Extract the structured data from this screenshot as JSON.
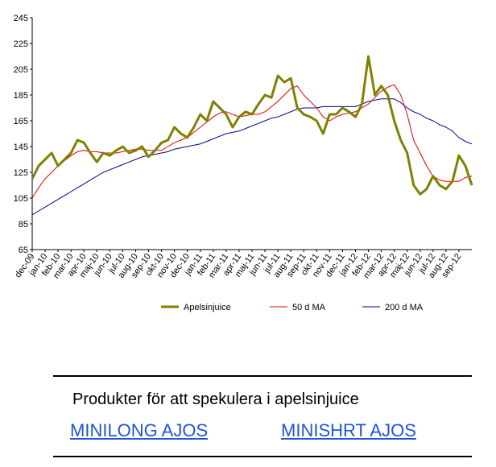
{
  "chart_data": {
    "type": "line",
    "categories": [
      "dec-09",
      null,
      "jan-10",
      null,
      "feb-10",
      null,
      "mar-10",
      null,
      "apr-10",
      null,
      "maj-10",
      null,
      "jun-10",
      null,
      "jul-10",
      null,
      "aug-10",
      null,
      "sep-10",
      null,
      "okt-10",
      null,
      "nov-10",
      null,
      "dec-10",
      null,
      "jan-11",
      null,
      "feb-11",
      null,
      "mar-11",
      null,
      "apr-11",
      null,
      "maj-11",
      null,
      "jun-11",
      null,
      "jul-11",
      null,
      "aug-11",
      null,
      "sep-11",
      null,
      "okt-11",
      null,
      "nov-11",
      null,
      "dec-11",
      null,
      "jan-12",
      null,
      "feb-12",
      null,
      "mar-12",
      null,
      "apr-12",
      null,
      "maj-12",
      null,
      "jun-12",
      null,
      "jul-12",
      null,
      "aug-12",
      null,
      "sep-12",
      null,
      null
    ],
    "series": [
      {
        "name": "Apelsinjuice",
        "color": "#808000",
        "width": 3,
        "values": [
          120,
          130,
          135,
          140,
          130,
          135,
          140,
          150,
          148,
          140,
          133,
          140,
          138,
          142,
          145,
          140,
          142,
          145,
          137,
          142,
          148,
          150,
          160,
          155,
          152,
          160,
          170,
          165,
          180,
          175,
          170,
          160,
          168,
          172,
          170,
          178,
          185,
          183,
          200,
          195,
          198,
          175,
          170,
          168,
          165,
          155,
          170,
          170,
          175,
          172,
          168,
          178,
          215,
          185,
          192,
          185,
          165,
          150,
          140,
          115,
          108,
          112,
          122,
          115,
          112,
          118,
          138,
          130,
          115
        ]
      },
      {
        "name": "50 d MA",
        "color": "#e00000",
        "width": 1,
        "values": [
          105,
          113,
          120,
          125,
          130,
          134,
          138,
          141,
          142,
          141,
          141,
          140,
          140,
          140,
          141,
          142,
          143,
          143,
          142,
          142,
          142,
          145,
          148,
          150,
          152,
          156,
          160,
          164,
          168,
          171,
          172,
          170,
          168,
          169,
          170,
          170,
          172,
          176,
          180,
          185,
          190,
          192,
          185,
          180,
          175,
          168,
          165,
          168,
          170,
          171,
          172,
          175,
          178,
          183,
          188,
          191,
          193,
          185,
          170,
          150,
          140,
          130,
          122,
          119,
          118,
          118,
          118,
          121,
          122
        ]
      },
      {
        "name": "200 d MA",
        "color": "#00008b",
        "width": 1,
        "values": [
          92,
          95,
          98,
          101,
          104,
          107,
          110,
          113,
          116,
          119,
          122,
          125,
          127,
          129,
          131,
          133,
          135,
          137,
          138,
          139,
          140,
          141,
          143,
          144,
          145,
          146,
          147,
          149,
          151,
          153,
          155,
          156,
          157,
          159,
          161,
          163,
          165,
          167,
          168,
          170,
          172,
          174,
          175,
          175,
          175,
          176,
          176,
          176,
          176,
          176,
          176,
          178,
          180,
          181,
          182,
          182,
          182,
          179,
          175,
          172,
          170,
          167,
          165,
          162,
          160,
          157,
          152,
          149,
          147
        ]
      }
    ],
    "ylim": [
      65,
      245
    ],
    "yticks": [
      65,
      85,
      105,
      125,
      145,
      165,
      185,
      205,
      225,
      245
    ],
    "grid": false,
    "legend": "bottom"
  },
  "footer": {
    "heading": "Produkter för att spekulera i apelsinjuice",
    "links": [
      "MINILONG AJOS",
      "MINISHRT AJOS"
    ]
  }
}
